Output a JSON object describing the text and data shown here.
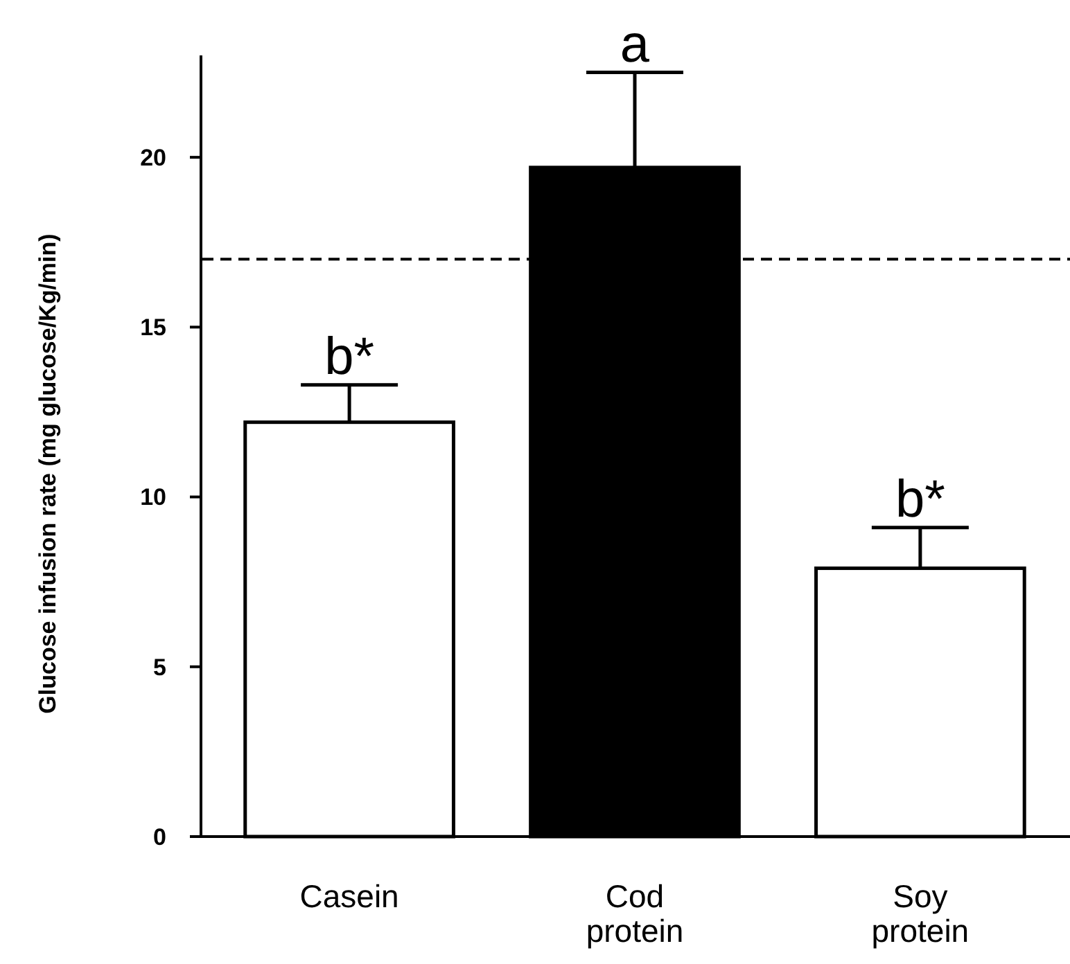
{
  "chart_data": {
    "type": "bar",
    "ylabel": "Glucose infusion rate (mg glucose/Kg/min)",
    "categories": [
      "Casein",
      "Cod protein",
      "Soy protein"
    ],
    "values": [
      12.2,
      19.7,
      7.9
    ],
    "colors": [
      "#ffffff",
      "#000000",
      "#ffffff"
    ],
    "errors": [
      [
        12.2,
        13.3
      ],
      [
        19.7,
        22.5
      ],
      [
        7.9,
        9.1
      ]
    ],
    "ylim": [
      0,
      23
    ],
    "yticks": [
      0,
      5,
      10,
      15,
      20
    ],
    "grid": false,
    "ref_lines": [
      {
        "axis": "y",
        "value": 17,
        "line_style": "dashed",
        "color": "#000000"
      }
    ],
    "annotations": [
      {
        "text": "b*",
        "x": "Casein",
        "y": 13.3
      },
      {
        "text": "a",
        "x": "Cod protein",
        "y": 22.5
      },
      {
        "text": "b*",
        "x": "Soy protein",
        "y": 9.1
      }
    ]
  }
}
